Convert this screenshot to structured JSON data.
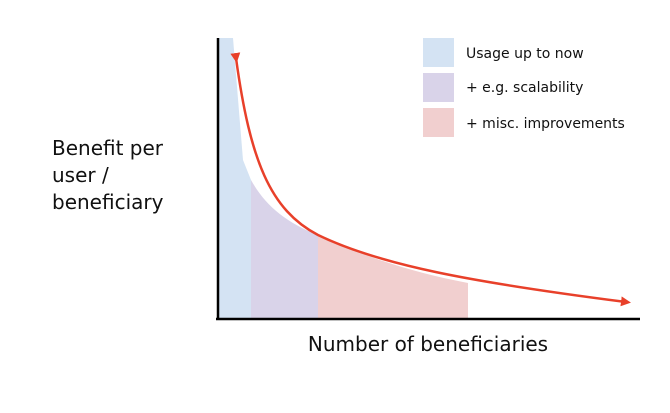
{
  "y_axis_label": [
    "Benefit per",
    "user /",
    "beneficiary"
  ],
  "x_axis_label": "Number of beneficiaries",
  "legend": [
    {
      "label": "Usage up to now",
      "color": "#d4e3f3"
    },
    {
      "label": "+ e.g. scalability",
      "color": "#d9d3e9"
    },
    {
      "label": "+ misc. improvements",
      "color": "#f1cfcf"
    }
  ],
  "colors": {
    "curve": "#e8402a",
    "axis": "#000000"
  }
}
